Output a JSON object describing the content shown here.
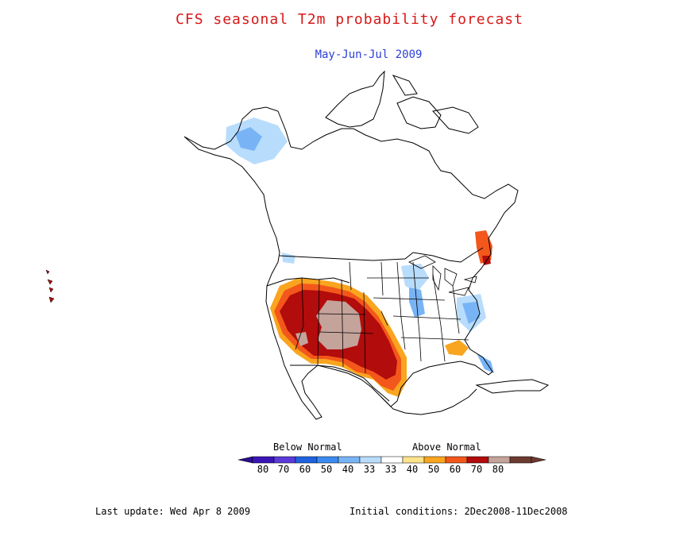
{
  "title": "CFS seasonal T2m probability forecast",
  "subtitle": "May-Jun-Jul 2009",
  "legend": {
    "below_label": "Below Normal",
    "above_label": "Above Normal",
    "below_ticks": [
      "80",
      "70",
      "60",
      "50",
      "40",
      "33"
    ],
    "above_ticks": [
      "33",
      "40",
      "50",
      "60",
      "70",
      "80"
    ],
    "below_colors": [
      "#3a15b8",
      "#5a3ad8",
      "#1f62e0",
      "#3b8af0",
      "#78b4f5",
      "#b8dcfc"
    ],
    "neutral_color": "#ffffff",
    "above_colors": [
      "#fde38a",
      "#f9a51f",
      "#f3571b",
      "#b20c0c",
      "#c4a39b",
      "#6d3a30"
    ]
  },
  "footer": {
    "last_update": "Last update: Wed Apr 8 2009",
    "initial_conditions": "Initial conditions: 2Dec2008-11Dec2008"
  },
  "colors": {
    "title": "#d81818",
    "subtitle": "#2c3fd8"
  }
}
